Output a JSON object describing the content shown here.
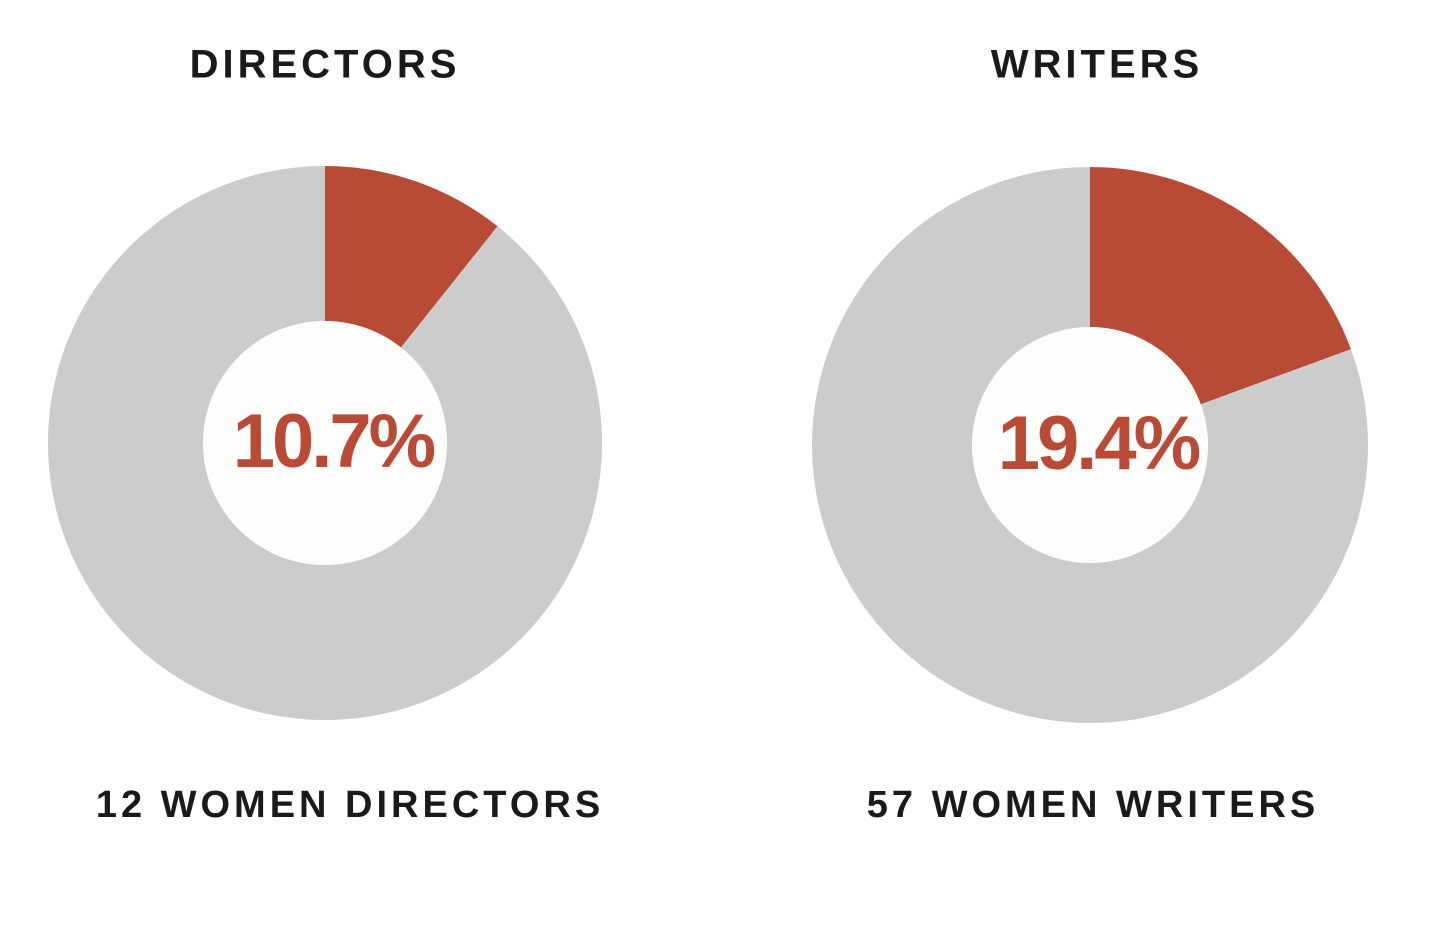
{
  "chart_data": [
    {
      "type": "pie",
      "title": "DIRECTORS",
      "values": [
        10.7,
        89.3
      ],
      "value_labels": [
        "10.7%",
        null
      ],
      "colors": [
        "#b94a36",
        "#cccccc"
      ],
      "caption": "12 WOMEN DIRECTORS"
    },
    {
      "type": "pie",
      "title": "WRITERS",
      "values": [
        19.4,
        80.6
      ],
      "value_labels": [
        "19.4%",
        null
      ],
      "colors": [
        "#b94a36",
        "#cccccc"
      ],
      "caption": "57 WOMEN WRITERS"
    }
  ]
}
